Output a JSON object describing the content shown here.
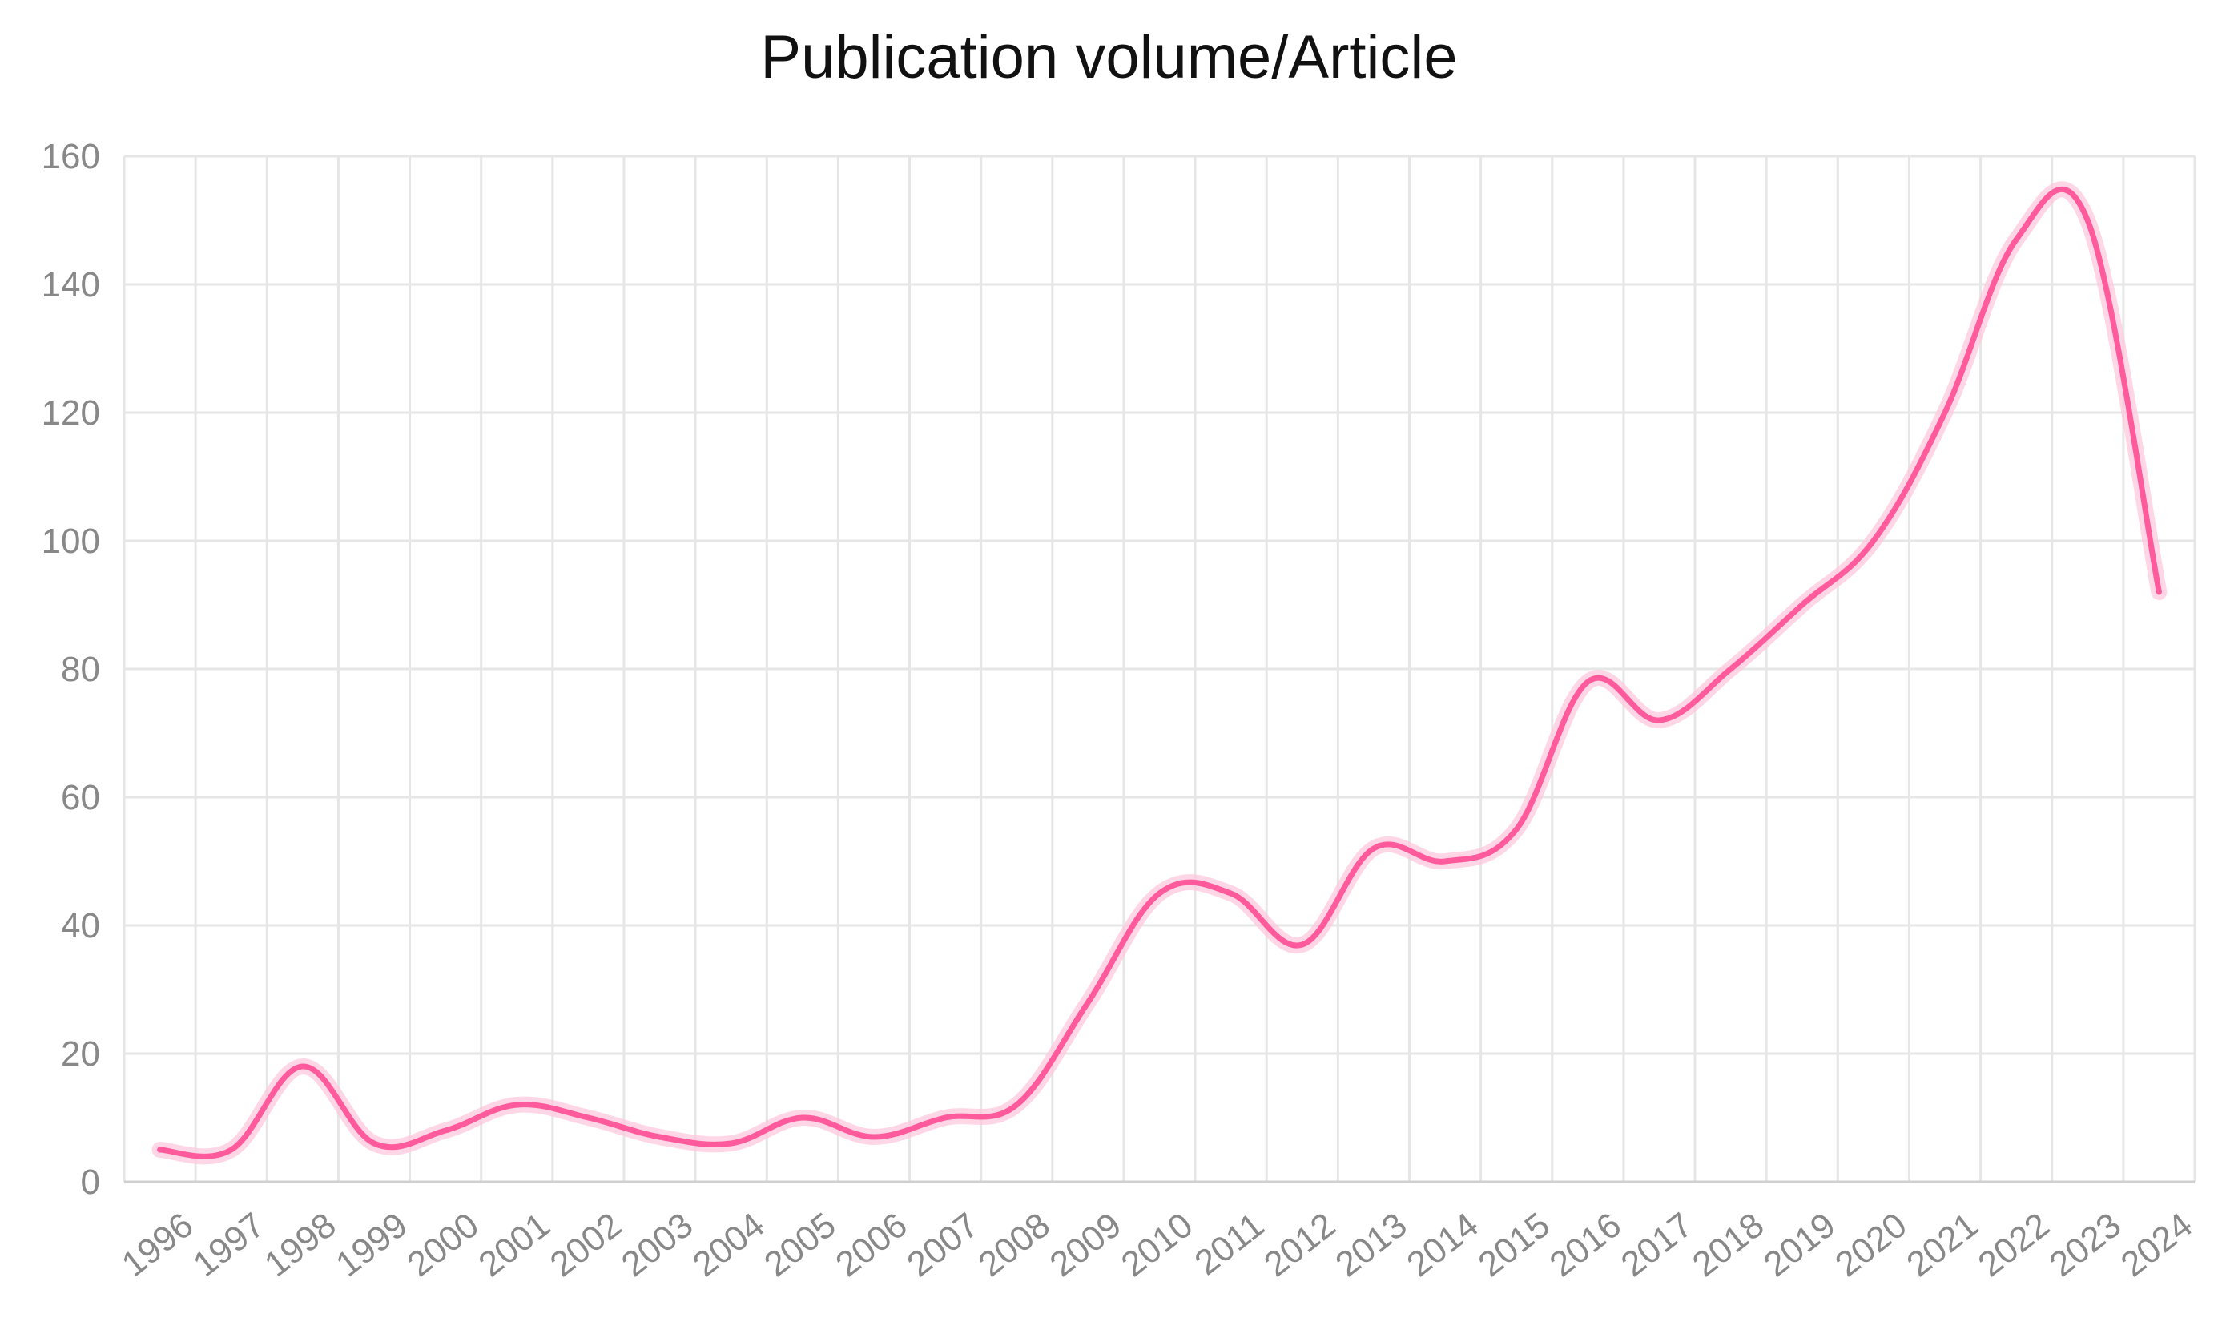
{
  "chart_data": {
    "type": "line",
    "title": "Publication volume/Article",
    "xlabel": "",
    "ylabel": "",
    "ylim": [
      0,
      160
    ],
    "yticks": [
      "0",
      "20",
      "40",
      "60",
      "80",
      "100",
      "120",
      "140",
      "160"
    ],
    "categories": [
      "1996",
      "1997",
      "1998",
      "1999",
      "2000",
      "2001",
      "2002",
      "2003",
      "2004",
      "2005",
      "2006",
      "2007",
      "2008",
      "2009",
      "2010",
      "2011",
      "2012",
      "2013",
      "2014",
      "2015",
      "2016",
      "2017",
      "2018",
      "2019",
      "2020",
      "2021",
      "2022",
      "2023",
      "2024"
    ],
    "series": [
      {
        "values": [
          5,
          5,
          18,
          6,
          8,
          12,
          10,
          7,
          6,
          10,
          7,
          10,
          12,
          28,
          45,
          45,
          37,
          52,
          50,
          55,
          78,
          72,
          80,
          90,
          100,
          120,
          147,
          150,
          92
        ],
        "color": "#ff5a9b"
      }
    ],
    "grid": true,
    "legend": "none"
  }
}
